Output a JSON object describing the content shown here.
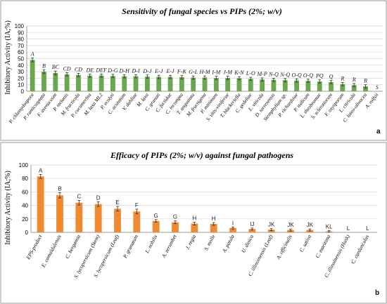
{
  "chart_data": [
    {
      "type": "bar",
      "panel": "a",
      "title": "Sensitivity of fungal species vs PIPs (2%; w/v)",
      "ylabel": "Inhibitory Activity (IA;%)",
      "xlabel": "",
      "ylim": [
        0,
        100
      ],
      "yticks": [
        0,
        10,
        20,
        30,
        40,
        50,
        60,
        70,
        80,
        90,
        100
      ],
      "grid": true,
      "color": "#6aa84f",
      "categories": [
        "P. chlamydospora",
        "P. ramicosptata",
        "F. avenaceum",
        "P. melonis",
        "M. fructicola",
        "P. cucumerina",
        "M. laxa ML2",
        "P. ecolyti",
        "C. acutatum",
        "V. dahliae",
        "M. laxa",
        "C. granati",
        "C. fuctidae",
        "C. incompta",
        "T. angustata",
        "M. fructigena",
        "P. minimum",
        "S. vitis-viniferae",
        "T. blackeriella",
        "C. gedeliae",
        "L. viticola",
        "D. torresensis",
        "Stemphylium sp.",
        "P. richardsiae",
        "P. italicum",
        "L. theobromae",
        "S. sclerotiorum",
        "F. oxysporum",
        "L. citricola",
        "C. luteo-olivacea",
        "A. rolfsii"
      ],
      "values": [
        48,
        30,
        28,
        26,
        25,
        24,
        24,
        23.5,
        23,
        23,
        22.5,
        22,
        22,
        21.5,
        21,
        21,
        20.5,
        20.5,
        20,
        19,
        18,
        17.5,
        17,
        16.5,
        16,
        15,
        14,
        11,
        9.5,
        7.5,
        0
      ],
      "errors": [
        3,
        3,
        3,
        2.5,
        2.5,
        2.5,
        2.5,
        2.5,
        2.5,
        2.5,
        2.5,
        2.5,
        2.5,
        2.5,
        2.5,
        2.5,
        2.5,
        2.5,
        2.5,
        2.5,
        2.5,
        2.5,
        2.5,
        2.5,
        2.5,
        2.5,
        2.5,
        2.5,
        2.5,
        2.5,
        0
      ],
      "letters": [
        "A",
        "B",
        "BC",
        "CD",
        "CD",
        "DE",
        "DEF",
        "D-G",
        "D-H",
        "D-I",
        "D-J",
        "E-J",
        "E-J",
        "F-K",
        "G-L",
        "H-M",
        "I-M",
        "J-M",
        "K-N",
        "L-O",
        "M-P",
        "N-Q",
        "N-Q",
        "O-Q",
        "O-Q",
        "PQ",
        "Q",
        "R",
        "R",
        "R",
        "S"
      ]
    },
    {
      "type": "bar",
      "panel": "b",
      "title": "Efficacy of PIPs  (2%; w/v) against fungal pathogens",
      "ylabel": "Inhibitory Activity (IA;%)",
      "xlabel": "",
      "ylim": [
        0,
        100
      ],
      "yticks": [
        0,
        20,
        40,
        60,
        80,
        100
      ],
      "grid": true,
      "color": "#f08a30",
      "categories": [
        "EPS-product",
        "E. camaldulensis",
        "C. bergamia",
        "S. lycopersicum (Stem)",
        "S. lycopersicum (Leaf)",
        "P. granatum",
        "L. nobilis",
        "A. zerumbet",
        "J. regia",
        "S. molle",
        "A. patula",
        "U. dioica",
        "C. illinoinensis (Leaf)",
        "A. officinalis",
        "C. sativa",
        "C. maritima",
        "C. illinoinensis (Husk)",
        "C. cardunculus"
      ],
      "values": [
        83,
        55,
        44,
        42,
        35,
        31,
        17,
        15,
        13,
        12.5,
        6.5,
        5,
        4,
        3.5,
        3.5,
        1.5,
        0,
        0
      ],
      "errors": [
        3,
        4,
        3.5,
        3.5,
        3.5,
        3.5,
        2,
        2,
        2,
        2,
        1.5,
        1.5,
        1.5,
        1.5,
        1.5,
        1,
        0,
        0
      ],
      "letters": [
        "A",
        "B",
        "C",
        "D",
        "E",
        "F",
        "G",
        "G",
        "H",
        "H",
        "I",
        "IJ",
        "JK",
        "JK",
        "JK",
        "KL",
        "L",
        "L"
      ]
    }
  ]
}
